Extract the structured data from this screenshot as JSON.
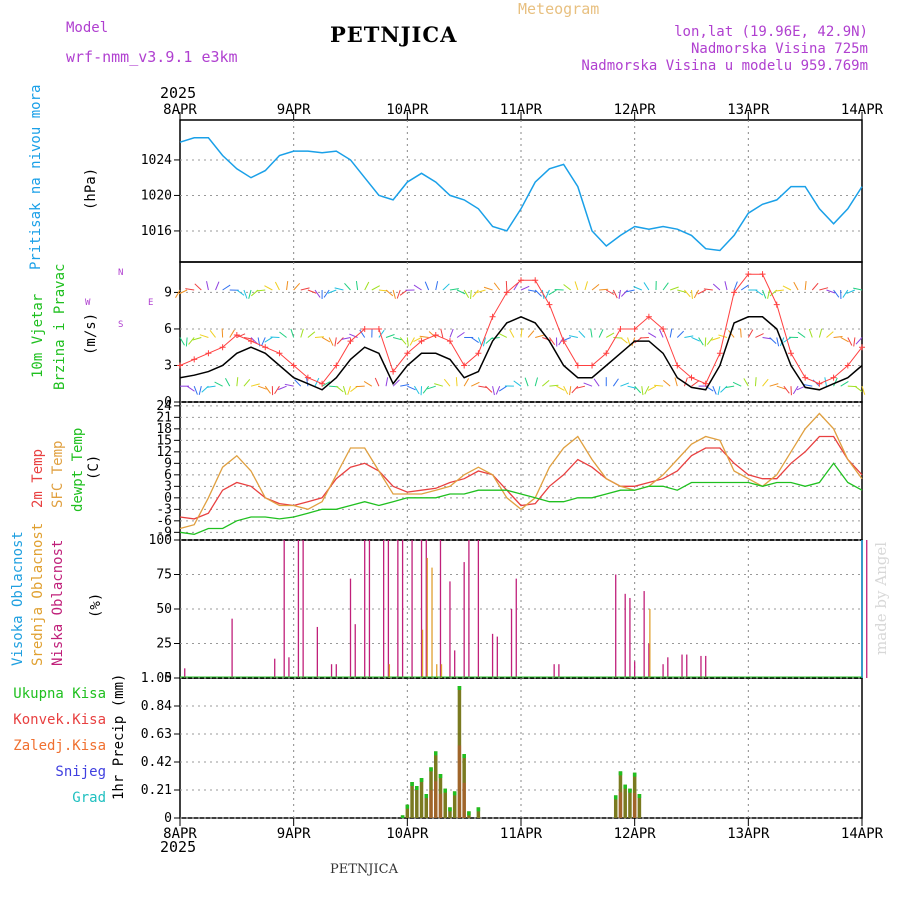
{
  "header": {
    "model_label": "Model",
    "model_value": "wrf-nmm_v3.9.1 e3km",
    "station": "PETNJICA",
    "product": "Meteogram",
    "coords": "lon,lat (19.96E, 42.9N)",
    "elevation": "Nadmorska Visina 725m",
    "model_elevation": "Nadmorska Visina u modelu 959.769m",
    "credit": "made by Angel",
    "footer_station": "PETNJICA",
    "year": "2025"
  },
  "x_axis": {
    "ticks": [
      "8APR",
      "9APR",
      "10APR",
      "11APR",
      "12APR",
      "13APR",
      "14APR"
    ],
    "hours": 144
  },
  "colors": {
    "pressure": "#1aa0e8",
    "wind_speed": "#000000",
    "gust": "#ff4040",
    "temp2m": "#e84040",
    "sfc": "#e0a040",
    "dewpt": "#20c020",
    "high_cloud": "#20a0e0",
    "mid_cloud": "#e0a030",
    "low_cloud": "#c0207a",
    "total_precip": "#20c020",
    "conv_precip": "#e84040",
    "frz": "#f07030",
    "snow": "#4040e0",
    "grad": "#20c0c0",
    "precip_bar": "#7a7a20"
  },
  "chart_data": [
    {
      "type": "line",
      "name": "pressure",
      "ylabel_left": "Pritisak na nivou mora",
      "ylabel_right": "(hPa)",
      "ylim": [
        1012.5,
        1028.5
      ],
      "yticks": [
        1016,
        1020,
        1024
      ],
      "x_hours": [
        0,
        3,
        6,
        9,
        12,
        15,
        18,
        21,
        24,
        27,
        30,
        33,
        36,
        39,
        42,
        45,
        48,
        51,
        54,
        57,
        60,
        63,
        66,
        69,
        72,
        75,
        78,
        81,
        84,
        87,
        90,
        93,
        96,
        99,
        102,
        105,
        108,
        111,
        114,
        117,
        120,
        123,
        126,
        129,
        132,
        135,
        138,
        141,
        144
      ],
      "values": [
        1026,
        1026.5,
        1026.5,
        1024.5,
        1023,
        1022,
        1022.8,
        1024.5,
        1025,
        1025,
        1024.8,
        1025,
        1024,
        1022,
        1020,
        1019.5,
        1021.5,
        1022.5,
        1021.5,
        1020,
        1019.5,
        1018.5,
        1016.5,
        1016,
        1018.5,
        1021.5,
        1023,
        1023.5,
        1021,
        1016,
        1014.3,
        1015.5,
        1016.5,
        1016.2,
        1016.5,
        1016.2,
        1015.5,
        1014,
        1013.8,
        1015.5,
        1018,
        1019,
        1019.5,
        1021,
        1021,
        1018.5,
        1016.8,
        1018.5,
        1021
      ]
    },
    {
      "type": "line",
      "name": "wind",
      "ylabel_left": "10m Vjetar Brzina i Pravac",
      "ylabel_right": "(m/s)",
      "compass": [
        "N",
        "W",
        "E",
        "S"
      ],
      "ylim": [
        0,
        11.5
      ],
      "yticks": [
        0,
        3,
        6,
        9
      ],
      "x_hours": [
        0,
        3,
        6,
        9,
        12,
        15,
        18,
        21,
        24,
        27,
        30,
        33,
        36,
        39,
        42,
        45,
        48,
        51,
        54,
        57,
        60,
        63,
        66,
        69,
        72,
        75,
        78,
        81,
        84,
        87,
        90,
        93,
        96,
        99,
        102,
        105,
        108,
        111,
        114,
        117,
        120,
        123,
        126,
        129,
        132,
        135,
        138,
        141,
        144
      ],
      "series": [
        {
          "name": "speed",
          "values": [
            2,
            2.2,
            2.5,
            3,
            4,
            4.5,
            4,
            3,
            2,
            1.5,
            1,
            2,
            3.5,
            4.5,
            4,
            1.5,
            3,
            4,
            4,
            3.5,
            2,
            2.5,
            5,
            6.5,
            7,
            6.5,
            5,
            3,
            2,
            2,
            3,
            4,
            5,
            5,
            4,
            2,
            1.2,
            1,
            3,
            6.5,
            7,
            7,
            6,
            3,
            1.2,
            1,
            1.5,
            2,
            3
          ]
        },
        {
          "name": "gust",
          "values": [
            3,
            3.5,
            4,
            4.5,
            5.5,
            5,
            4.5,
            4,
            3,
            2,
            1.5,
            3,
            5,
            6,
            6,
            2.5,
            4,
            5,
            5.5,
            5,
            3,
            4,
            7,
            9,
            10,
            10,
            8,
            5,
            3,
            3,
            4,
            6,
            6,
            7,
            6,
            3,
            2,
            1.5,
            4,
            9,
            10.5,
            10.5,
            8,
            4,
            2,
            1.5,
            2,
            3,
            4.5
          ]
        }
      ]
    },
    {
      "type": "line",
      "name": "temperature",
      "ylabel_left": [
        "2m Temp",
        "SFC Temp",
        "dewpt Temp"
      ],
      "ylabel_right": "(C)",
      "ylim": [
        -11,
        25
      ],
      "yticks": [
        -9,
        -6,
        -3,
        0,
        3,
        6,
        9,
        12,
        15,
        18,
        21,
        24
      ],
      "x_hours": [
        0,
        3,
        6,
        9,
        12,
        15,
        18,
        21,
        24,
        27,
        30,
        33,
        36,
        39,
        42,
        45,
        48,
        51,
        54,
        57,
        60,
        63,
        66,
        69,
        72,
        75,
        78,
        81,
        84,
        87,
        90,
        93,
        96,
        99,
        102,
        105,
        108,
        111,
        114,
        117,
        120,
        123,
        126,
        129,
        132,
        135,
        138,
        141,
        144
      ],
      "series": [
        {
          "name": "temp2m",
          "values": [
            -5,
            -5.5,
            -4,
            2,
            4,
            3,
            0,
            -1.5,
            -2,
            -1,
            0,
            5,
            8,
            9,
            7,
            3,
            1.5,
            2,
            2.5,
            4,
            5,
            7,
            6,
            2,
            -2,
            -1.5,
            3,
            6,
            10,
            8,
            5,
            3,
            3,
            4,
            5,
            7,
            11,
            13,
            13,
            9,
            6,
            5,
            5,
            9,
            12,
            16,
            16,
            10,
            6
          ]
        },
        {
          "name": "sfc",
          "values": [
            -8,
            -7,
            0,
            8,
            11,
            7,
            0,
            -2,
            -2,
            -3,
            -1,
            6,
            13,
            13,
            7,
            1,
            1,
            1,
            2,
            3,
            6,
            8,
            6,
            0,
            -3,
            0,
            8,
            13,
            16,
            10,
            5,
            3,
            2,
            3,
            6,
            10,
            14,
            16,
            15,
            7,
            5,
            3,
            6,
            12,
            18,
            22,
            18,
            10,
            5
          ]
        },
        {
          "name": "dewpt",
          "values": [
            -9,
            -9.5,
            -8,
            -8,
            -6,
            -5,
            -5,
            -5.5,
            -5,
            -4,
            -3,
            -3,
            -2,
            -1,
            -2,
            -1,
            0,
            0,
            0,
            1,
            1,
            2,
            2,
            2,
            1,
            0,
            -1,
            -1,
            0,
            0,
            1,
            2,
            2,
            3,
            3,
            2,
            4,
            4,
            4,
            4,
            4,
            3,
            4,
            4,
            3,
            4,
            9,
            4,
            2
          ]
        }
      ]
    },
    {
      "type": "bar",
      "name": "clouds",
      "ylabel_left": [
        "Visoka Oblacnost",
        "Srednja Oblacnost",
        "Niska Oblacnost"
      ],
      "ylabel_right": "(%)",
      "ylim": [
        0,
        100
      ],
      "yticks": [
        0,
        25,
        50,
        75,
        100
      ],
      "low_bars": [
        [
          1,
          7
        ],
        [
          11,
          43
        ],
        [
          20,
          14
        ],
        [
          22,
          100
        ],
        [
          23,
          15
        ],
        [
          25,
          100
        ],
        [
          26,
          100
        ],
        [
          29,
          37
        ],
        [
          32,
          10
        ],
        [
          33,
          10
        ],
        [
          36,
          72
        ],
        [
          37,
          39
        ],
        [
          39,
          100
        ],
        [
          40,
          100
        ],
        [
          43,
          100
        ],
        [
          44,
          100
        ],
        [
          46,
          100
        ],
        [
          47,
          100
        ],
        [
          49,
          100
        ],
        [
          51,
          100
        ],
        [
          52,
          100
        ],
        [
          55,
          100
        ],
        [
          57,
          70
        ],
        [
          58,
          20
        ],
        [
          60,
          84
        ],
        [
          61,
          100
        ],
        [
          63,
          100
        ],
        [
          66,
          32
        ],
        [
          67,
          30
        ],
        [
          70,
          50
        ],
        [
          71,
          72
        ],
        [
          79,
          10
        ],
        [
          80,
          10
        ],
        [
          92,
          75
        ],
        [
          94,
          61
        ],
        [
          95,
          58
        ],
        [
          96,
          12
        ],
        [
          98,
          63
        ],
        [
          99,
          25
        ],
        [
          102,
          10
        ],
        [
          103,
          15
        ],
        [
          106,
          17
        ],
        [
          107,
          17
        ],
        [
          110,
          16
        ],
        [
          111,
          16
        ],
        [
          145,
          100
        ]
      ],
      "mid_bars": [
        [
          44,
          10
        ],
        [
          51,
          35
        ],
        [
          52,
          87
        ],
        [
          53,
          80
        ],
        [
          54,
          10
        ],
        [
          55,
          10
        ],
        [
          99,
          50
        ]
      ],
      "high_bars": [
        [
          145,
          100
        ]
      ]
    },
    {
      "type": "bar",
      "name": "precipitation",
      "ylabel_left": [
        "Ukupna Kisa",
        "Konvek.Kisa",
        "Zaledj.Kisa",
        "Snijeg",
        "Grad"
      ],
      "ylabel_right": "1hr Precip (mm)",
      "ylim": [
        0,
        1.05
      ],
      "yticks": [
        0,
        0.21,
        0.42,
        0.63,
        0.84,
        1.05
      ],
      "ytick_labels": [
        "0",
        "0.21",
        "0.42",
        "0.63",
        "0.84",
        "1.05"
      ],
      "hours": [
        47,
        48,
        49,
        50,
        51,
        52,
        53,
        54,
        55,
        56,
        57,
        58,
        59,
        60,
        61,
        62,
        63,
        92,
        93,
        94,
        95,
        96,
        97
      ],
      "values": [
        0.02,
        0.1,
        0.27,
        0.24,
        0.3,
        0.18,
        0.38,
        0.5,
        0.33,
        0.22,
        0.08,
        0.2,
        0.99,
        0.48,
        0.05,
        0,
        0.08,
        0.17,
        0.35,
        0.25,
        0.22,
        0.34,
        0.18
      ],
      "series_legend": [
        "Ukupna Kisa",
        "Konvek.Kisa",
        "Zaledj.Kisa",
        "Snijeg",
        "Grad"
      ]
    }
  ]
}
